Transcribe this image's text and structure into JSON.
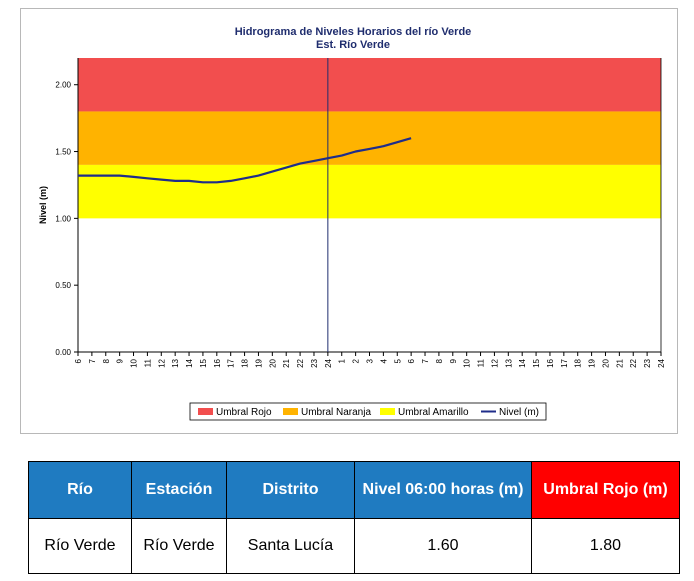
{
  "chart_data": {
    "type": "line",
    "title": "Hidrograma de Niveles Horarios del río Verde",
    "subtitle": "Est. Río Verde",
    "ylabel": "Nivel (m)",
    "xlabel": "",
    "ylim": [
      0,
      2.2
    ],
    "y_ticks": [
      "0.00",
      "0.50",
      "1.00",
      "1.50",
      "2.00"
    ],
    "x_ticks": [
      "6",
      "7",
      "8",
      "9",
      "10",
      "11",
      "12",
      "13",
      "14",
      "15",
      "16",
      "17",
      "18",
      "19",
      "20",
      "21",
      "22",
      "23",
      "24",
      "1",
      "2",
      "3",
      "4",
      "5",
      "6",
      "7",
      "8",
      "9",
      "10",
      "11",
      "12",
      "13",
      "14",
      "15",
      "16",
      "17",
      "18",
      "19",
      "20",
      "21",
      "22",
      "23",
      "24"
    ],
    "current_time_marker": "24",
    "bands": [
      {
        "name": "Umbral Rojo",
        "from": 1.8,
        "to": 2.2,
        "color": "#f24e4e"
      },
      {
        "name": "Umbral Naranja",
        "from": 1.4,
        "to": 1.8,
        "color": "#ffb300"
      },
      {
        "name": "Umbral Amarillo",
        "from": 1.0,
        "to": 1.4,
        "color": "#ffff00"
      }
    ],
    "series": [
      {
        "name": "Nivel (m)",
        "color": "#1f2d8a",
        "x_index": [
          0,
          1,
          2,
          3,
          4,
          5,
          6,
          7,
          8,
          9,
          10,
          11,
          12,
          13,
          14,
          15,
          16,
          17,
          18,
          19,
          20,
          21,
          22,
          23,
          24
        ],
        "values": [
          1.32,
          1.32,
          1.32,
          1.32,
          1.31,
          1.3,
          1.29,
          1.28,
          1.28,
          1.27,
          1.27,
          1.28,
          1.3,
          1.32,
          1.35,
          1.38,
          1.41,
          1.43,
          1.45,
          1.47,
          1.5,
          1.52,
          1.54,
          1.57,
          1.6
        ]
      }
    ],
    "legend": [
      "Umbral Rojo",
      "Umbral Naranja",
      "Umbral Amarillo",
      "Nivel (m)"
    ],
    "legend_placement": "bottom",
    "grid": false
  },
  "table": {
    "headers": [
      "Río",
      "Estación",
      "Distrito",
      "Nivel 06:00 horas (m)",
      "Umbral Rojo (m)"
    ],
    "row": [
      "Río Verde",
      "Río Verde",
      "Santa Lucía",
      "1.60",
      "1.80"
    ]
  }
}
